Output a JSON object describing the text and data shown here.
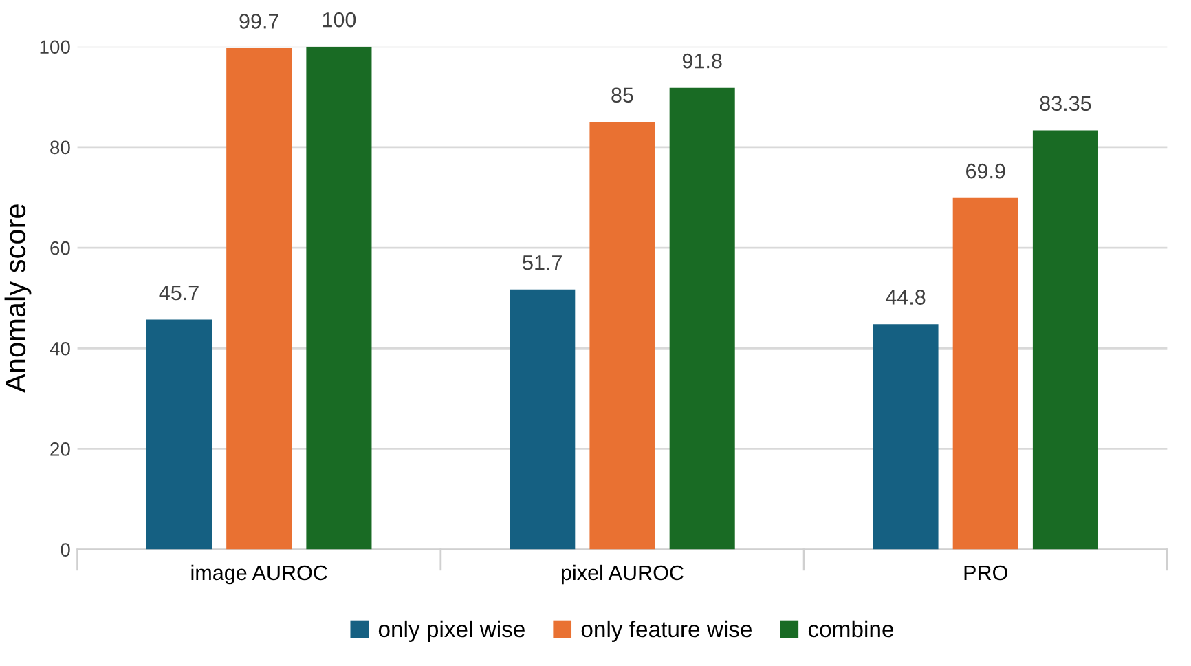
{
  "chart_data": {
    "type": "bar",
    "ylabel": "Anomaly score",
    "categories": [
      "image AUROC",
      "pixel AUROC",
      "PRO"
    ],
    "series": [
      {
        "name": "only pixel wise",
        "color": "#156082",
        "values": [
          45.7,
          51.7,
          44.8
        ]
      },
      {
        "name": "only feature wise",
        "color": "#e97132",
        "values": [
          99.7,
          85,
          69.9
        ]
      },
      {
        "name": "combine",
        "color": "#196b24",
        "values": [
          100,
          91.8,
          83.35
        ]
      }
    ],
    "ylim": [
      0,
      100
    ],
    "yticks": [
      0,
      20,
      40,
      60,
      80,
      100
    ],
    "grid": "y",
    "legend": "bottom",
    "data_labels": true
  }
}
